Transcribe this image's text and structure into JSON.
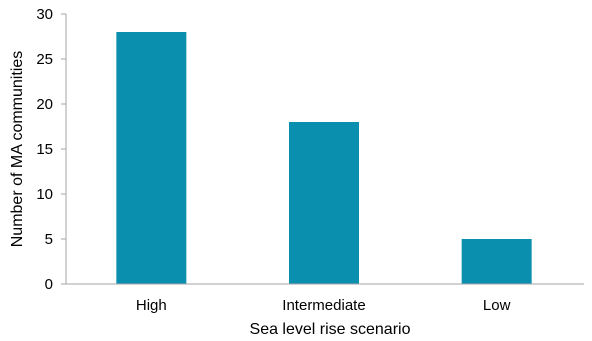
{
  "chart_data": {
    "type": "bar",
    "categories": [
      "High",
      "Intermediate",
      "Low"
    ],
    "values": [
      28,
      18,
      5
    ],
    "title": "",
    "xlabel": "Sea level rise scenario",
    "ylabel": "Number of MA communities",
    "ylim": [
      0,
      30
    ],
    "yticks": [
      0,
      5,
      10,
      15,
      20,
      25,
      30
    ],
    "grid": false,
    "legend": "none",
    "bar_color": "#0a8fae",
    "axis_color": "#a6a6a6"
  }
}
